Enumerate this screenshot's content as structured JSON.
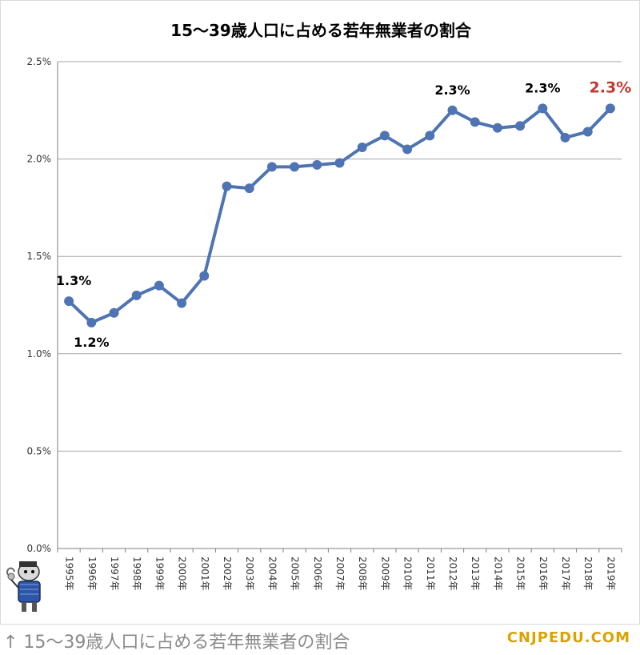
{
  "caption": "↑ 15～39歳人口に占める若年無業者の割合",
  "watermark": "CNJPEDU.COM",
  "colors": {
    "line": "#4f74b3",
    "grid": "#a6a6a6",
    "highlight": "#c0392b"
  },
  "chart_data": {
    "type": "line",
    "title": "15～39歳人口に占める若年無業者の割合",
    "xlabel": "",
    "ylabel": "",
    "ylim": [
      0,
      2.5
    ],
    "yticks": [
      "0.0%",
      "0.5%",
      "1.0%",
      "1.5%",
      "2.0%",
      "2.5%"
    ],
    "grid": true,
    "categories": [
      "1995年",
      "1996年",
      "1997年",
      "1998年",
      "1999年",
      "2000年",
      "2001年",
      "2002年",
      "2003年",
      "2004年",
      "2005年",
      "2006年",
      "2007年",
      "2008年",
      "2009年",
      "2010年",
      "2011年",
      "2012年",
      "2013年",
      "2014年",
      "2015年",
      "2016年",
      "2017年",
      "2018年",
      "2019年"
    ],
    "series": [
      {
        "values": [
          1.27,
          1.16,
          1.21,
          1.3,
          1.35,
          1.26,
          1.4,
          1.86,
          1.85,
          1.96,
          1.96,
          1.97,
          1.98,
          2.06,
          2.12,
          2.05,
          2.12,
          2.25,
          2.19,
          2.16,
          2.17,
          2.26,
          2.11,
          2.14,
          2.26
        ]
      }
    ],
    "annotations": [
      {
        "index": 0,
        "text": "1.3%",
        "position": "above",
        "highlight": false
      },
      {
        "index": 1,
        "text": "1.2%",
        "position": "below",
        "highlight": false
      },
      {
        "index": 17,
        "text": "2.3%",
        "position": "above",
        "highlight": false
      },
      {
        "index": 21,
        "text": "2.3%",
        "position": "above",
        "highlight": false
      },
      {
        "index": 24,
        "text": "2.3%",
        "position": "above",
        "highlight": true
      }
    ]
  }
}
